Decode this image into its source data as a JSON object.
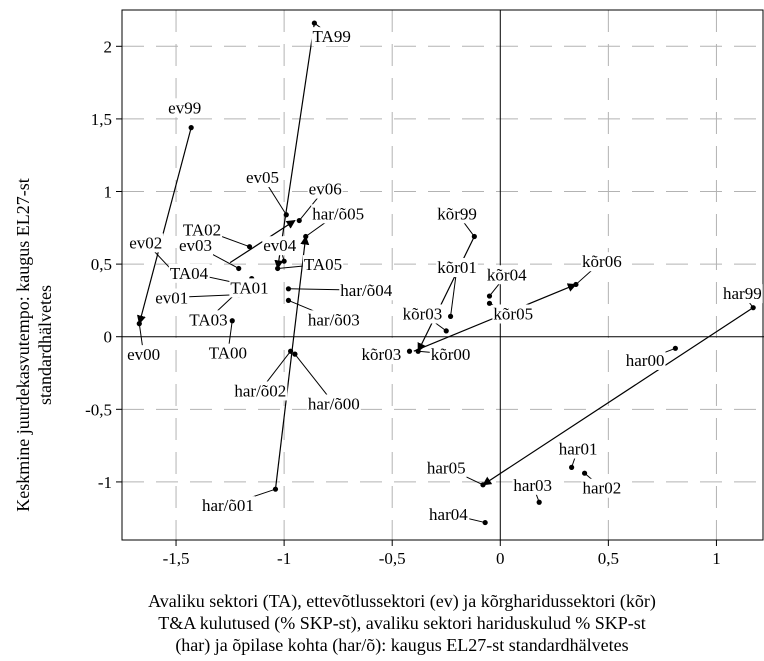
{
  "chart_data": {
    "type": "scatter",
    "xlim": [
      -1.75,
      1.22
    ],
    "ylim": [
      -1.4,
      2.25
    ],
    "grid": true,
    "legend": "none",
    "x_ticks": [
      -1.5,
      -1,
      -0.5,
      0,
      0.5,
      1
    ],
    "x_tick_labels": [
      "-1,5",
      "-1",
      "-0,5",
      "0",
      "0,5",
      "1"
    ],
    "y_ticks": [
      -1,
      -0.5,
      0,
      0.5,
      1,
      1.5,
      2
    ],
    "y_tick_labels": [
      "-1",
      "-0,5",
      "0",
      "0,5",
      "1",
      "1,5",
      "2"
    ],
    "xlabel_lines": [
      "Avaliku sektori (TA), ettevõtlussektori (ev) ja kõrgharidussektori (kõr)",
      "T&A kulutused (% SKP-st), avaliku sektori hariduskulud % SKP-st",
      "(har) ja õpilase kohta (har/õ): kaugus EL27-st standardhälvetes"
    ],
    "ylabel_lines": [
      "Keskmine juurdekasvutempo: kaugus EL27-st",
      "standardhälvetes"
    ],
    "points": [
      {
        "label": "TA99",
        "x": -0.86,
        "y": 2.16,
        "lx": -0.78,
        "ly": 2.07,
        "lead": true
      },
      {
        "label": "TA00",
        "x": -1.24,
        "y": 0.11,
        "lx": -1.26,
        "ly": -0.11,
        "lead": true
      },
      {
        "label": "TA01",
        "x": -1.17,
        "y": 0.37,
        "lx": -1.16,
        "ly": 0.34,
        "lead": true
      },
      {
        "label": "TA02",
        "x": -1.16,
        "y": 0.62,
        "lx": -1.38,
        "ly": 0.74,
        "lead": true
      },
      {
        "label": "TA03",
        "x": -1.15,
        "y": 0.4,
        "lx": -1.35,
        "ly": 0.12,
        "lead": true
      },
      {
        "label": "TA04",
        "x": -1.22,
        "y": 0.37,
        "lx": -1.44,
        "ly": 0.44,
        "lead": true
      },
      {
        "label": "TA05",
        "x": -1.03,
        "y": 0.47,
        "lx": -0.82,
        "ly": 0.5,
        "lead": true
      },
      {
        "label": "ev99",
        "x": -1.43,
        "y": 1.44,
        "lx": -1.46,
        "ly": 1.58,
        "lead": false
      },
      {
        "label": "ev00",
        "x": -1.67,
        "y": 0.09,
        "lx": -1.65,
        "ly": -0.12,
        "lead": true
      },
      {
        "label": "ev01",
        "x": -1.21,
        "y": 0.29,
        "lx": -1.52,
        "ly": 0.27,
        "lead": true
      },
      {
        "label": "ev02",
        "x": -1.52,
        "y": 0.46,
        "lx": -1.64,
        "ly": 0.65,
        "lead": true
      },
      {
        "label": "ev03",
        "x": -1.21,
        "y": 0.47,
        "lx": -1.41,
        "ly": 0.63,
        "lead": true
      },
      {
        "label": "ev04",
        "x": -1.0,
        "y": 0.52,
        "lx": -1.02,
        "ly": 0.63,
        "lead": true
      },
      {
        "label": "ev05",
        "x": -0.99,
        "y": 0.84,
        "lx": -1.1,
        "ly": 1.1,
        "lead": true
      },
      {
        "label": "ev06",
        "x": -0.93,
        "y": 0.8,
        "lx": -0.81,
        "ly": 1.02,
        "lead": true
      },
      {
        "label": "har/õ00",
        "x": -0.95,
        "y": -0.12,
        "lx": -0.77,
        "ly": -0.46,
        "lead": true
      },
      {
        "label": "har/õ01",
        "x": -1.04,
        "y": -1.05,
        "lx": -1.26,
        "ly": -1.16,
        "lead": true
      },
      {
        "label": "har/õ02",
        "x": -0.97,
        "y": -0.1,
        "lx": -1.11,
        "ly": -0.37,
        "lead": true
      },
      {
        "label": "har/õ03",
        "x": -0.98,
        "y": 0.25,
        "lx": -0.77,
        "ly": 0.12,
        "lead": true
      },
      {
        "label": "har/õ04",
        "x": -0.98,
        "y": 0.33,
        "lx": -0.62,
        "ly": 0.32,
        "lead": true
      },
      {
        "label": "har/õ05",
        "x": -0.9,
        "y": 0.69,
        "lx": -0.75,
        "ly": 0.85,
        "lead": true
      },
      {
        "label": "kõr99",
        "x": -0.12,
        "y": 0.69,
        "lx": -0.2,
        "ly": 0.85,
        "lead": true
      },
      {
        "label": "kõr00",
        "x": -0.38,
        "y": -0.1,
        "lx": -0.23,
        "ly": -0.12,
        "lead": true
      },
      {
        "label": "kõr01",
        "x": -0.23,
        "y": 0.14,
        "lx": -0.2,
        "ly": 0.48,
        "lead": true
      },
      {
        "label": "kõr03",
        "x": -0.42,
        "y": -0.1,
        "lx": -0.55,
        "ly": -0.12,
        "lead": false
      },
      {
        "label": "kõr03",
        "x": -0.25,
        "y": 0.04,
        "lx": -0.36,
        "ly": 0.16,
        "lead": true
      },
      {
        "label": "kõr04",
        "x": -0.05,
        "y": 0.28,
        "lx": 0.03,
        "ly": 0.43,
        "lead": true
      },
      {
        "label": "kõr05",
        "x": -0.05,
        "y": 0.23,
        "lx": 0.06,
        "ly": 0.16,
        "lead": true
      },
      {
        "label": "kõr06",
        "x": 0.35,
        "y": 0.36,
        "lx": 0.47,
        "ly": 0.52,
        "lead": true
      },
      {
        "label": "har99",
        "x": 1.17,
        "y": 0.2,
        "lx": 1.12,
        "ly": 0.3,
        "lead": true
      },
      {
        "label": "har00",
        "x": 0.81,
        "y": -0.08,
        "lx": 0.67,
        "ly": -0.16,
        "lead": true
      },
      {
        "label": "har01",
        "x": 0.33,
        "y": -0.9,
        "lx": 0.36,
        "ly": -0.77,
        "lead": true
      },
      {
        "label": "har02",
        "x": 0.39,
        "y": -0.94,
        "lx": 0.47,
        "ly": -1.04,
        "lead": true
      },
      {
        "label": "har03",
        "x": 0.18,
        "y": -1.14,
        "lx": 0.15,
        "ly": -1.02,
        "lead": true
      },
      {
        "label": "har04",
        "x": -0.07,
        "y": -1.28,
        "lx": -0.24,
        "ly": -1.22,
        "lead": true
      },
      {
        "label": "har05",
        "x": -0.08,
        "y": -1.02,
        "lx": -0.25,
        "ly": -0.9,
        "lead": true
      }
    ],
    "arrows": [
      {
        "from": [
          -0.86,
          2.16
        ],
        "to": [
          -1.03,
          0.47
        ]
      },
      {
        "from": [
          -1.43,
          1.44
        ],
        "to": [
          -1.67,
          0.09
        ]
      },
      {
        "from": [
          -1.25,
          0.51
        ],
        "to": [
          -0.95,
          0.8
        ]
      },
      {
        "from": [
          -1.04,
          -1.05
        ],
        "to": [
          -0.9,
          0.69
        ]
      },
      {
        "from": [
          -0.12,
          0.69
        ],
        "to": [
          -0.38,
          -0.1
        ]
      },
      {
        "from": [
          -0.4,
          -0.1
        ],
        "to": [
          0.35,
          0.36
        ]
      },
      {
        "from": [
          1.17,
          0.2
        ],
        "to": [
          -0.08,
          -1.02
        ]
      }
    ]
  }
}
